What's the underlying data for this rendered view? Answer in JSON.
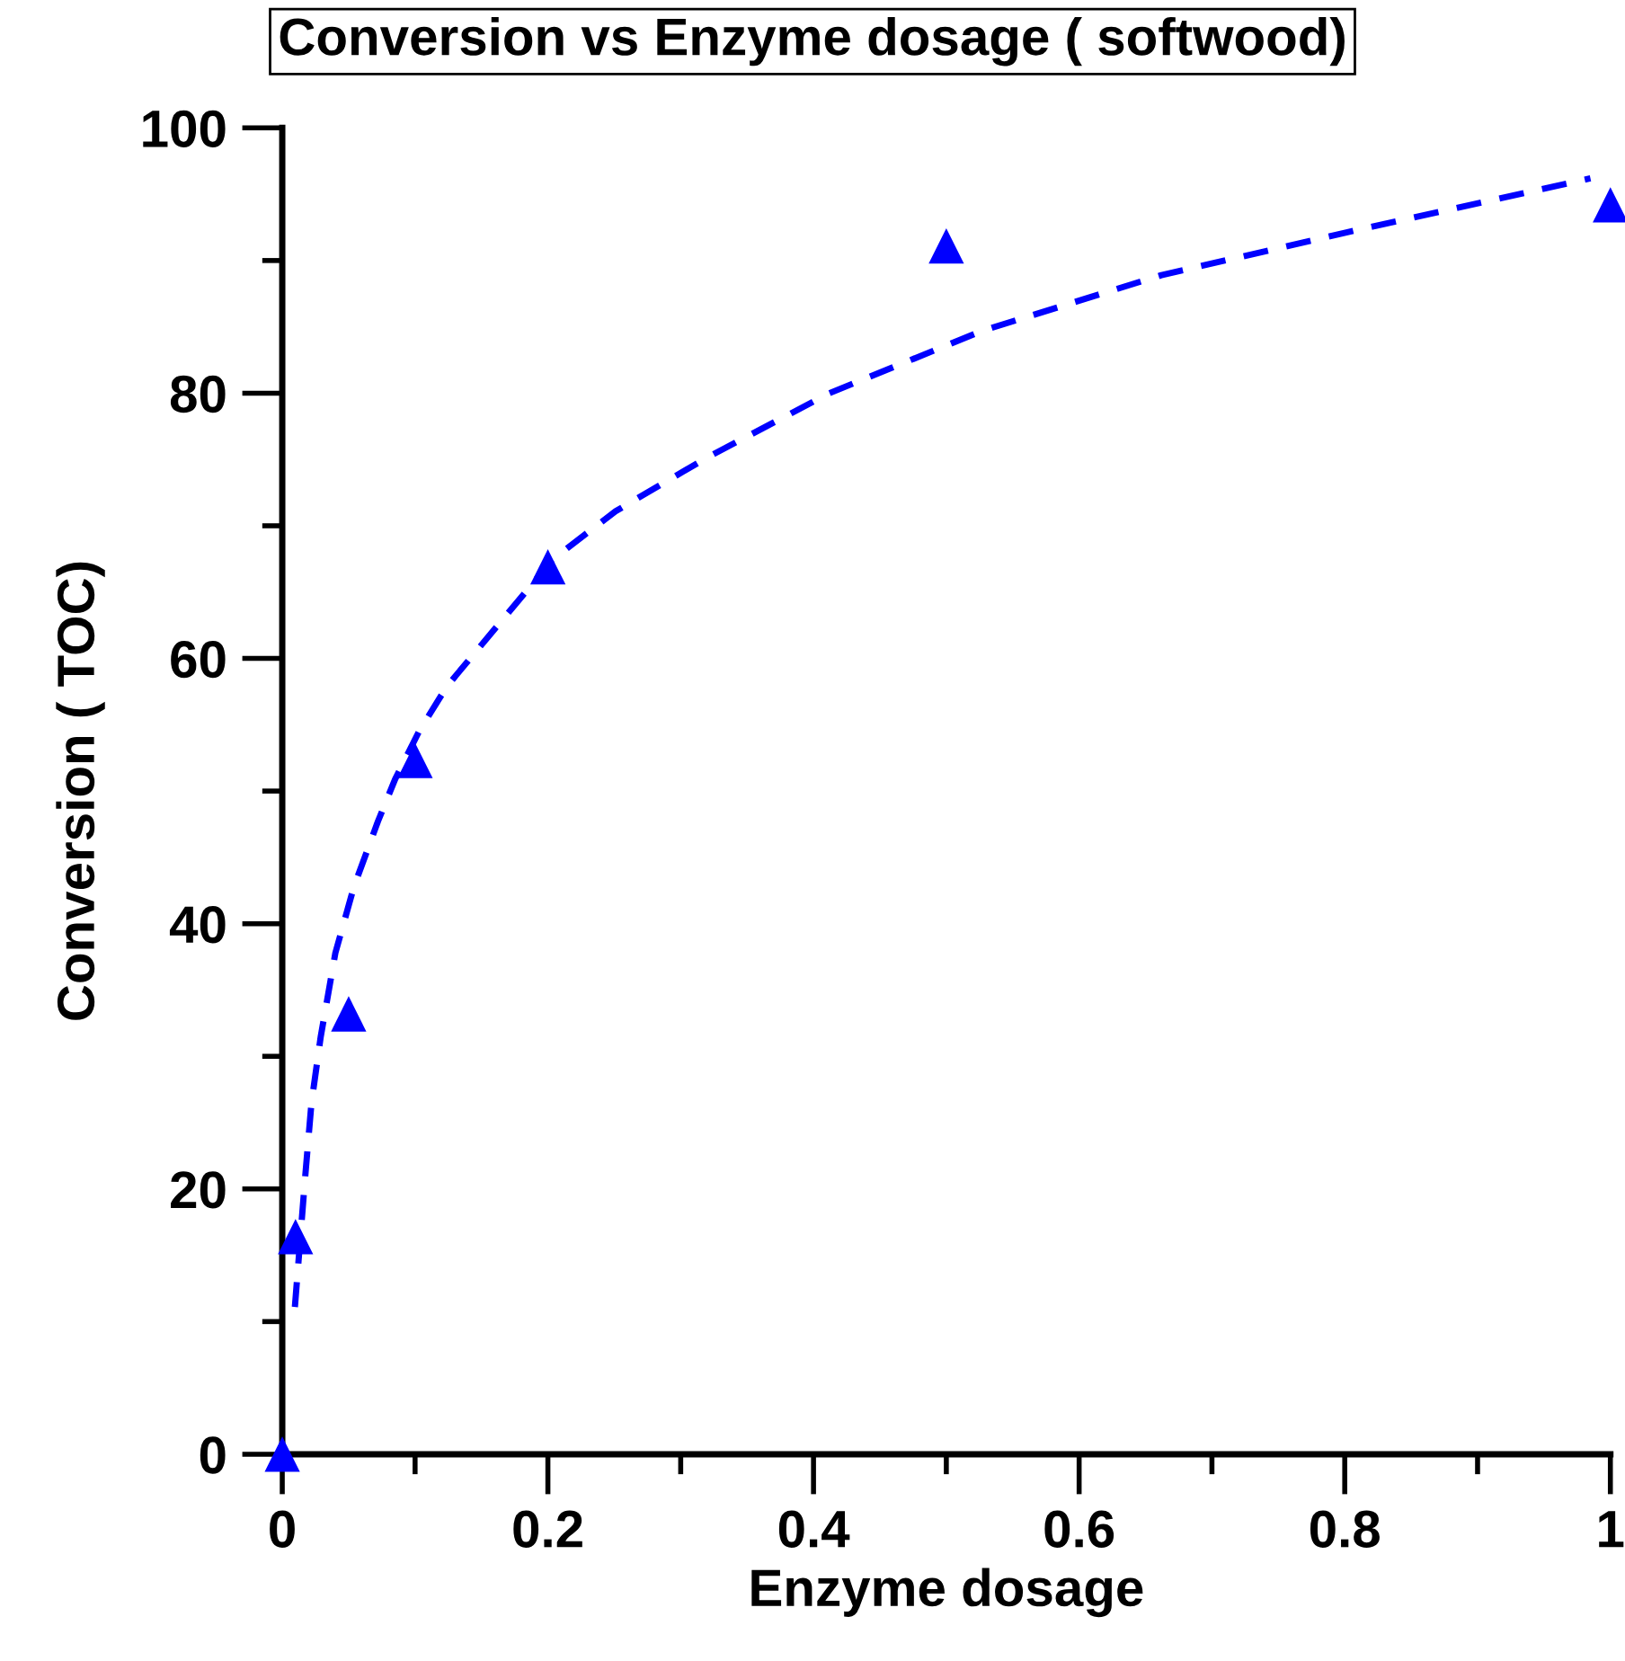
{
  "chart_data": {
    "type": "scatter",
    "title": "Conversion vs Enzyme dosage ( softwood)",
    "xlabel": "Enzyme dosage",
    "ylabel": "Conversion ( TOC)",
    "xlim": [
      0,
      1
    ],
    "ylim": [
      0,
      100
    ],
    "xticks": [
      0,
      {
        "value": 0.1,
        "label": null
      },
      0.2,
      {
        "value": 0.3,
        "label": null
      },
      0.4,
      {
        "value": 0.5,
        "label": null
      },
      0.6,
      {
        "value": 0.7,
        "label": null
      },
      0.8,
      {
        "value": 0.9,
        "label": null
      },
      1
    ],
    "yticks": [
      0,
      {
        "value": 10,
        "label": null
      },
      20,
      {
        "value": 30,
        "label": null
      },
      40,
      {
        "value": 50,
        "label": null
      },
      60,
      {
        "value": 70,
        "label": null
      },
      80,
      {
        "value": 90,
        "label": null
      },
      100
    ],
    "grid": false,
    "legend": false,
    "series": [
      {
        "color": "#0000ff",
        "marker": "triangle",
        "x": [
          0,
          0.01,
          0.05,
          0.1,
          0.2,
          0.5,
          1
        ],
        "values": [
          0,
          16.4,
          33.2,
          52.3,
          66.9,
          91.1,
          94.2
        ]
      },
      {
        "type": "line",
        "color": "#0000ff",
        "line_style": "dashed",
        "marker": "none",
        "x": [
          0.0095,
          0.017,
          0.022,
          0.029,
          0.04,
          0.054,
          0.072,
          0.085,
          0.103,
          0.124,
          0.204,
          0.251,
          0.319,
          0.412,
          0.527,
          0.662,
          0.818,
          0.985
        ],
        "values": [
          11.1,
          20.6,
          26.5,
          31.5,
          37.8,
          42.8,
          47.7,
          50.9,
          54.5,
          57.9,
          67.5,
          71.1,
          75.1,
          80.0,
          84.7,
          88.9,
          92.5,
          96.2
        ]
      }
    ]
  }
}
